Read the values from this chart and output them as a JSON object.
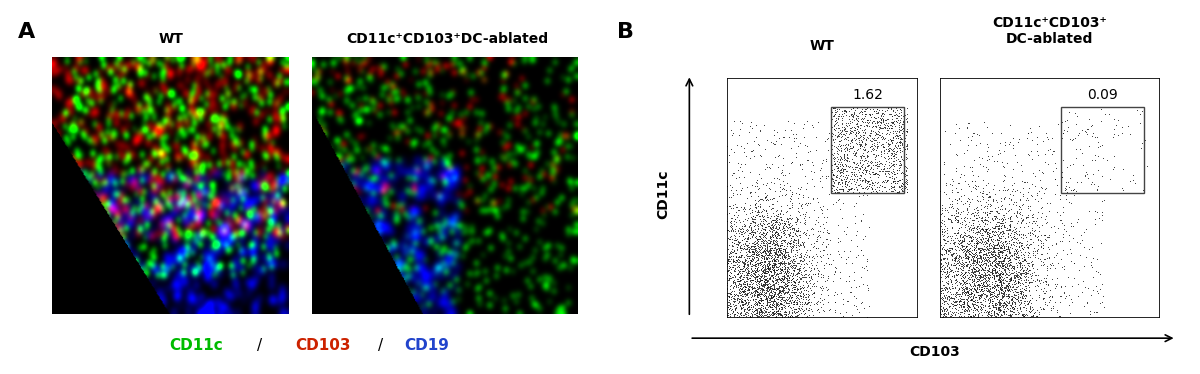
{
  "panel_A_label": "A",
  "panel_B_label": "B",
  "wt_title": "WT",
  "ablated_title_A": "CD11c⁺CD103⁺DC-ablated",
  "ablated_title_B_line1": "CD11c⁺CD103⁺",
  "ablated_title_B_line2": "DC-ablated",
  "legend_cd11c": "CD11c",
  "legend_cd103": "CD103",
  "legend_cd19": "CD19",
  "legend_cd11c_color": "#00bb00",
  "legend_cd103_color": "#cc2200",
  "legend_cd19_color": "#2244cc",
  "ylabel_B": "CD11c",
  "xlabel_B": "CD103",
  "wt_value": "1.62",
  "ablated_value": "0.09",
  "bg_color": "#ffffff",
  "scatter_color": "#111111",
  "gate_color": "#555555",
  "panel_label_fontsize": 16,
  "title_fontsize": 10,
  "legend_fontsize": 11,
  "value_fontsize": 10,
  "axis_label_fontsize": 10
}
